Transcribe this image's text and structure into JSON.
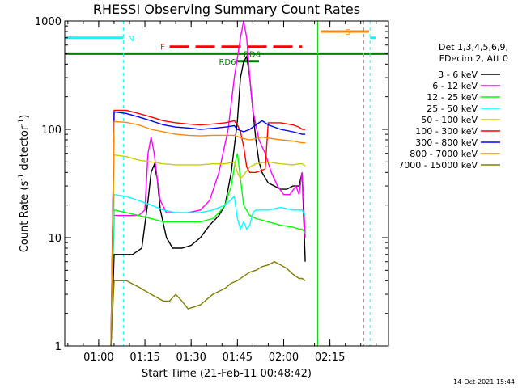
{
  "chart_data": {
    "type": "line",
    "title": "RHESSI Observing Summary Count Rates",
    "xlabel": "Start Time (21-Feb-11 00:48:42)",
    "ylabel_main": "Count Rate (s",
    "ylabel_sup1": "-1",
    "ylabel_mid": " detector",
    "ylabel_sup2": "-1",
    "ylabel_end": ")",
    "footer": "14-Oct-2021 15:44",
    "y_scale": "log",
    "ylim": [
      1,
      1000
    ],
    "xlim_minutes": [
      0,
      105
    ],
    "y_ticks": [
      {
        "label": "1",
        "value": 1
      },
      {
        "label": "10",
        "value": 10
      },
      {
        "label": "100",
        "value": 100
      },
      {
        "label": "1000",
        "value": 1000
      }
    ],
    "x_ticks": [
      {
        "label": "01:00",
        "minute": 11
      },
      {
        "label": "01:15",
        "minute": 26
      },
      {
        "label": "01:30",
        "minute": 41
      },
      {
        "label": "01:45",
        "minute": 56
      },
      {
        "label": "02:00",
        "minute": 71
      },
      {
        "label": "02:15",
        "minute": 86
      }
    ],
    "legend_header": [
      "Det 1,3,4,5,6,9,",
      "FDecim 2, Att 0"
    ],
    "legend_placement": "right",
    "series": [
      {
        "name": "3 - 6 keV",
        "color": "#000000",
        "points": [
          [
            15,
            0
          ],
          [
            16,
            7
          ],
          [
            19,
            7
          ],
          [
            22,
            7
          ],
          [
            25,
            8
          ],
          [
            27,
            22
          ],
          [
            28,
            40
          ],
          [
            29,
            47
          ],
          [
            30,
            35
          ],
          [
            31,
            18
          ],
          [
            33,
            10
          ],
          [
            35,
            8
          ],
          [
            38,
            8
          ],
          [
            41,
            8.5
          ],
          [
            44,
            10
          ],
          [
            47,
            13
          ],
          [
            50,
            16
          ],
          [
            52,
            20
          ],
          [
            54,
            40
          ],
          [
            56,
            120
          ],
          [
            57,
            300
          ],
          [
            58,
            420
          ],
          [
            59,
            470
          ],
          [
            60,
            300
          ],
          [
            61,
            150
          ],
          [
            62,
            80
          ],
          [
            63,
            50
          ],
          [
            64,
            40
          ],
          [
            66,
            32
          ],
          [
            68,
            30
          ],
          [
            70,
            28
          ],
          [
            72,
            28
          ],
          [
            74,
            30
          ],
          [
            76,
            30
          ],
          [
            77,
            40
          ],
          [
            78,
            6
          ]
        ]
      },
      {
        "name": "6 - 12 keV",
        "color": "#ff00ff",
        "points": [
          [
            15,
            0
          ],
          [
            16,
            16
          ],
          [
            20,
            16
          ],
          [
            24,
            16
          ],
          [
            26,
            18
          ],
          [
            27,
            60
          ],
          [
            28,
            85
          ],
          [
            29,
            60
          ],
          [
            30,
            35
          ],
          [
            31,
            22
          ],
          [
            33,
            17
          ],
          [
            36,
            17
          ],
          [
            40,
            17
          ],
          [
            44,
            18
          ],
          [
            47,
            22
          ],
          [
            50,
            40
          ],
          [
            53,
            100
          ],
          [
            55,
            300
          ],
          [
            57,
            700
          ],
          [
            58,
            1000
          ],
          [
            59,
            700
          ],
          [
            60,
            300
          ],
          [
            61,
            150
          ],
          [
            62,
            110
          ],
          [
            63,
            80
          ],
          [
            65,
            60
          ],
          [
            67,
            40
          ],
          [
            69,
            30
          ],
          [
            71,
            25
          ],
          [
            73,
            25
          ],
          [
            75,
            30
          ],
          [
            76,
            25
          ],
          [
            77,
            40
          ],
          [
            78,
            10
          ]
        ]
      },
      {
        "name": "12 - 25 keV",
        "color": "#00ff00",
        "points": [
          [
            15,
            0
          ],
          [
            16,
            18
          ],
          [
            20,
            17
          ],
          [
            24,
            16
          ],
          [
            28,
            15
          ],
          [
            32,
            14
          ],
          [
            36,
            14
          ],
          [
            40,
            14
          ],
          [
            44,
            14
          ],
          [
            48,
            15
          ],
          [
            50,
            17
          ],
          [
            52,
            20
          ],
          [
            54,
            30
          ],
          [
            55,
            45
          ],
          [
            56,
            60
          ],
          [
            57,
            35
          ],
          [
            58,
            20
          ],
          [
            60,
            16
          ],
          [
            62,
            15
          ],
          [
            66,
            14
          ],
          [
            70,
            13
          ],
          [
            74,
            12.5
          ],
          [
            76,
            12
          ],
          [
            77,
            12
          ],
          [
            78,
            11
          ]
        ]
      },
      {
        "name": "25 - 50 keV",
        "color": "#00ffff",
        "points": [
          [
            15,
            0
          ],
          [
            16,
            25
          ],
          [
            20,
            24
          ],
          [
            24,
            22
          ],
          [
            28,
            20
          ],
          [
            32,
            18
          ],
          [
            36,
            17
          ],
          [
            40,
            17
          ],
          [
            44,
            17
          ],
          [
            48,
            18
          ],
          [
            52,
            20
          ],
          [
            55,
            24
          ],
          [
            56,
            15
          ],
          [
            57,
            12
          ],
          [
            58,
            14
          ],
          [
            59,
            12
          ],
          [
            60,
            13
          ],
          [
            61,
            17
          ],
          [
            62,
            18
          ],
          [
            66,
            18
          ],
          [
            70,
            19
          ],
          [
            74,
            18
          ],
          [
            76,
            18
          ],
          [
            77,
            18
          ],
          [
            78,
            16
          ]
        ]
      },
      {
        "name": "50 - 100 keV",
        "color": "#cccc00",
        "points": [
          [
            15,
            0
          ],
          [
            16,
            58
          ],
          [
            20,
            56
          ],
          [
            24,
            52
          ],
          [
            28,
            50
          ],
          [
            32,
            48
          ],
          [
            36,
            47
          ],
          [
            40,
            47
          ],
          [
            44,
            47
          ],
          [
            48,
            48
          ],
          [
            52,
            48
          ],
          [
            55,
            50
          ],
          [
            56,
            40
          ],
          [
            57,
            35
          ],
          [
            58,
            38
          ],
          [
            60,
            45
          ],
          [
            62,
            48
          ],
          [
            66,
            50
          ],
          [
            70,
            48
          ],
          [
            74,
            47
          ],
          [
            76,
            48
          ],
          [
            77,
            48
          ],
          [
            78,
            46
          ]
        ]
      },
      {
        "name": "100 - 300 keV",
        "color": "#ff0000",
        "points": [
          [
            15,
            0
          ],
          [
            16,
            150
          ],
          [
            20,
            150
          ],
          [
            24,
            140
          ],
          [
            28,
            130
          ],
          [
            32,
            120
          ],
          [
            36,
            115
          ],
          [
            40,
            112
          ],
          [
            44,
            110
          ],
          [
            48,
            112
          ],
          [
            52,
            115
          ],
          [
            55,
            120
          ],
          [
            56,
            110
          ],
          [
            57,
            95
          ],
          [
            58,
            70
          ],
          [
            59,
            45
          ],
          [
            60,
            40
          ],
          [
            62,
            40
          ],
          [
            64,
            42
          ],
          [
            65,
            43
          ],
          [
            66,
            115
          ],
          [
            70,
            115
          ],
          [
            74,
            110
          ],
          [
            76,
            105
          ],
          [
            77,
            100
          ],
          [
            78,
            100
          ]
        ]
      },
      {
        "name": "300 - 800 keV",
        "color": "#0000ff",
        "points": [
          [
            15,
            0
          ],
          [
            16,
            145
          ],
          [
            20,
            140
          ],
          [
            24,
            130
          ],
          [
            28,
            120
          ],
          [
            32,
            110
          ],
          [
            36,
            105
          ],
          [
            40,
            103
          ],
          [
            44,
            100
          ],
          [
            48,
            102
          ],
          [
            52,
            105
          ],
          [
            55,
            108
          ],
          [
            56,
            100
          ],
          [
            58,
            95
          ],
          [
            60,
            100
          ],
          [
            62,
            110
          ],
          [
            64,
            120
          ],
          [
            66,
            110
          ],
          [
            70,
            100
          ],
          [
            74,
            95
          ],
          [
            76,
            92
          ],
          [
            77,
            90
          ],
          [
            78,
            90
          ]
        ]
      },
      {
        "name": "800 - 7000 keV",
        "color": "#ff8800",
        "points": [
          [
            15,
            0
          ],
          [
            16,
            118
          ],
          [
            20,
            116
          ],
          [
            24,
            110
          ],
          [
            28,
            100
          ],
          [
            32,
            95
          ],
          [
            36,
            90
          ],
          [
            40,
            88
          ],
          [
            44,
            87
          ],
          [
            48,
            88
          ],
          [
            52,
            88
          ],
          [
            55,
            88
          ],
          [
            56,
            86
          ],
          [
            58,
            82
          ],
          [
            60,
            80
          ],
          [
            62,
            82
          ],
          [
            64,
            85
          ],
          [
            66,
            83
          ],
          [
            70,
            80
          ],
          [
            74,
            78
          ],
          [
            76,
            76
          ],
          [
            77,
            75
          ],
          [
            78,
            75
          ]
        ]
      },
      {
        "name": "7000 - 15000 keV",
        "color": "#808000",
        "points": [
          [
            15,
            0
          ],
          [
            16,
            4
          ],
          [
            20,
            4
          ],
          [
            24,
            3.5
          ],
          [
            28,
            3
          ],
          [
            32,
            2.6
          ],
          [
            34,
            2.6
          ],
          [
            36,
            3
          ],
          [
            38,
            2.6
          ],
          [
            40,
            2.2
          ],
          [
            44,
            2.4
          ],
          [
            48,
            3
          ],
          [
            52,
            3.4
          ],
          [
            54,
            3.8
          ],
          [
            56,
            4
          ],
          [
            58,
            4.4
          ],
          [
            60,
            4.8
          ],
          [
            62,
            5
          ],
          [
            64,
            5.4
          ],
          [
            66,
            5.6
          ],
          [
            68,
            6
          ],
          [
            70,
            5.6
          ],
          [
            72,
            5.2
          ],
          [
            74,
            4.6
          ],
          [
            76,
            4.2
          ],
          [
            77,
            4.2
          ],
          [
            78,
            4
          ]
        ]
      }
    ],
    "annotations": [
      {
        "label": "N",
        "color": "#00ffff",
        "minute": 19
      },
      {
        "label": "S",
        "color": "#ff8800",
        "minute": 99
      },
      {
        "label": "F",
        "color": "#ff0000",
        "start": 34,
        "end": 77
      },
      {
        "label": "RD6",
        "color": "#008000",
        "at": 56
      },
      {
        "label": "RD6",
        "color": "#008000",
        "at": 60
      }
    ]
  }
}
